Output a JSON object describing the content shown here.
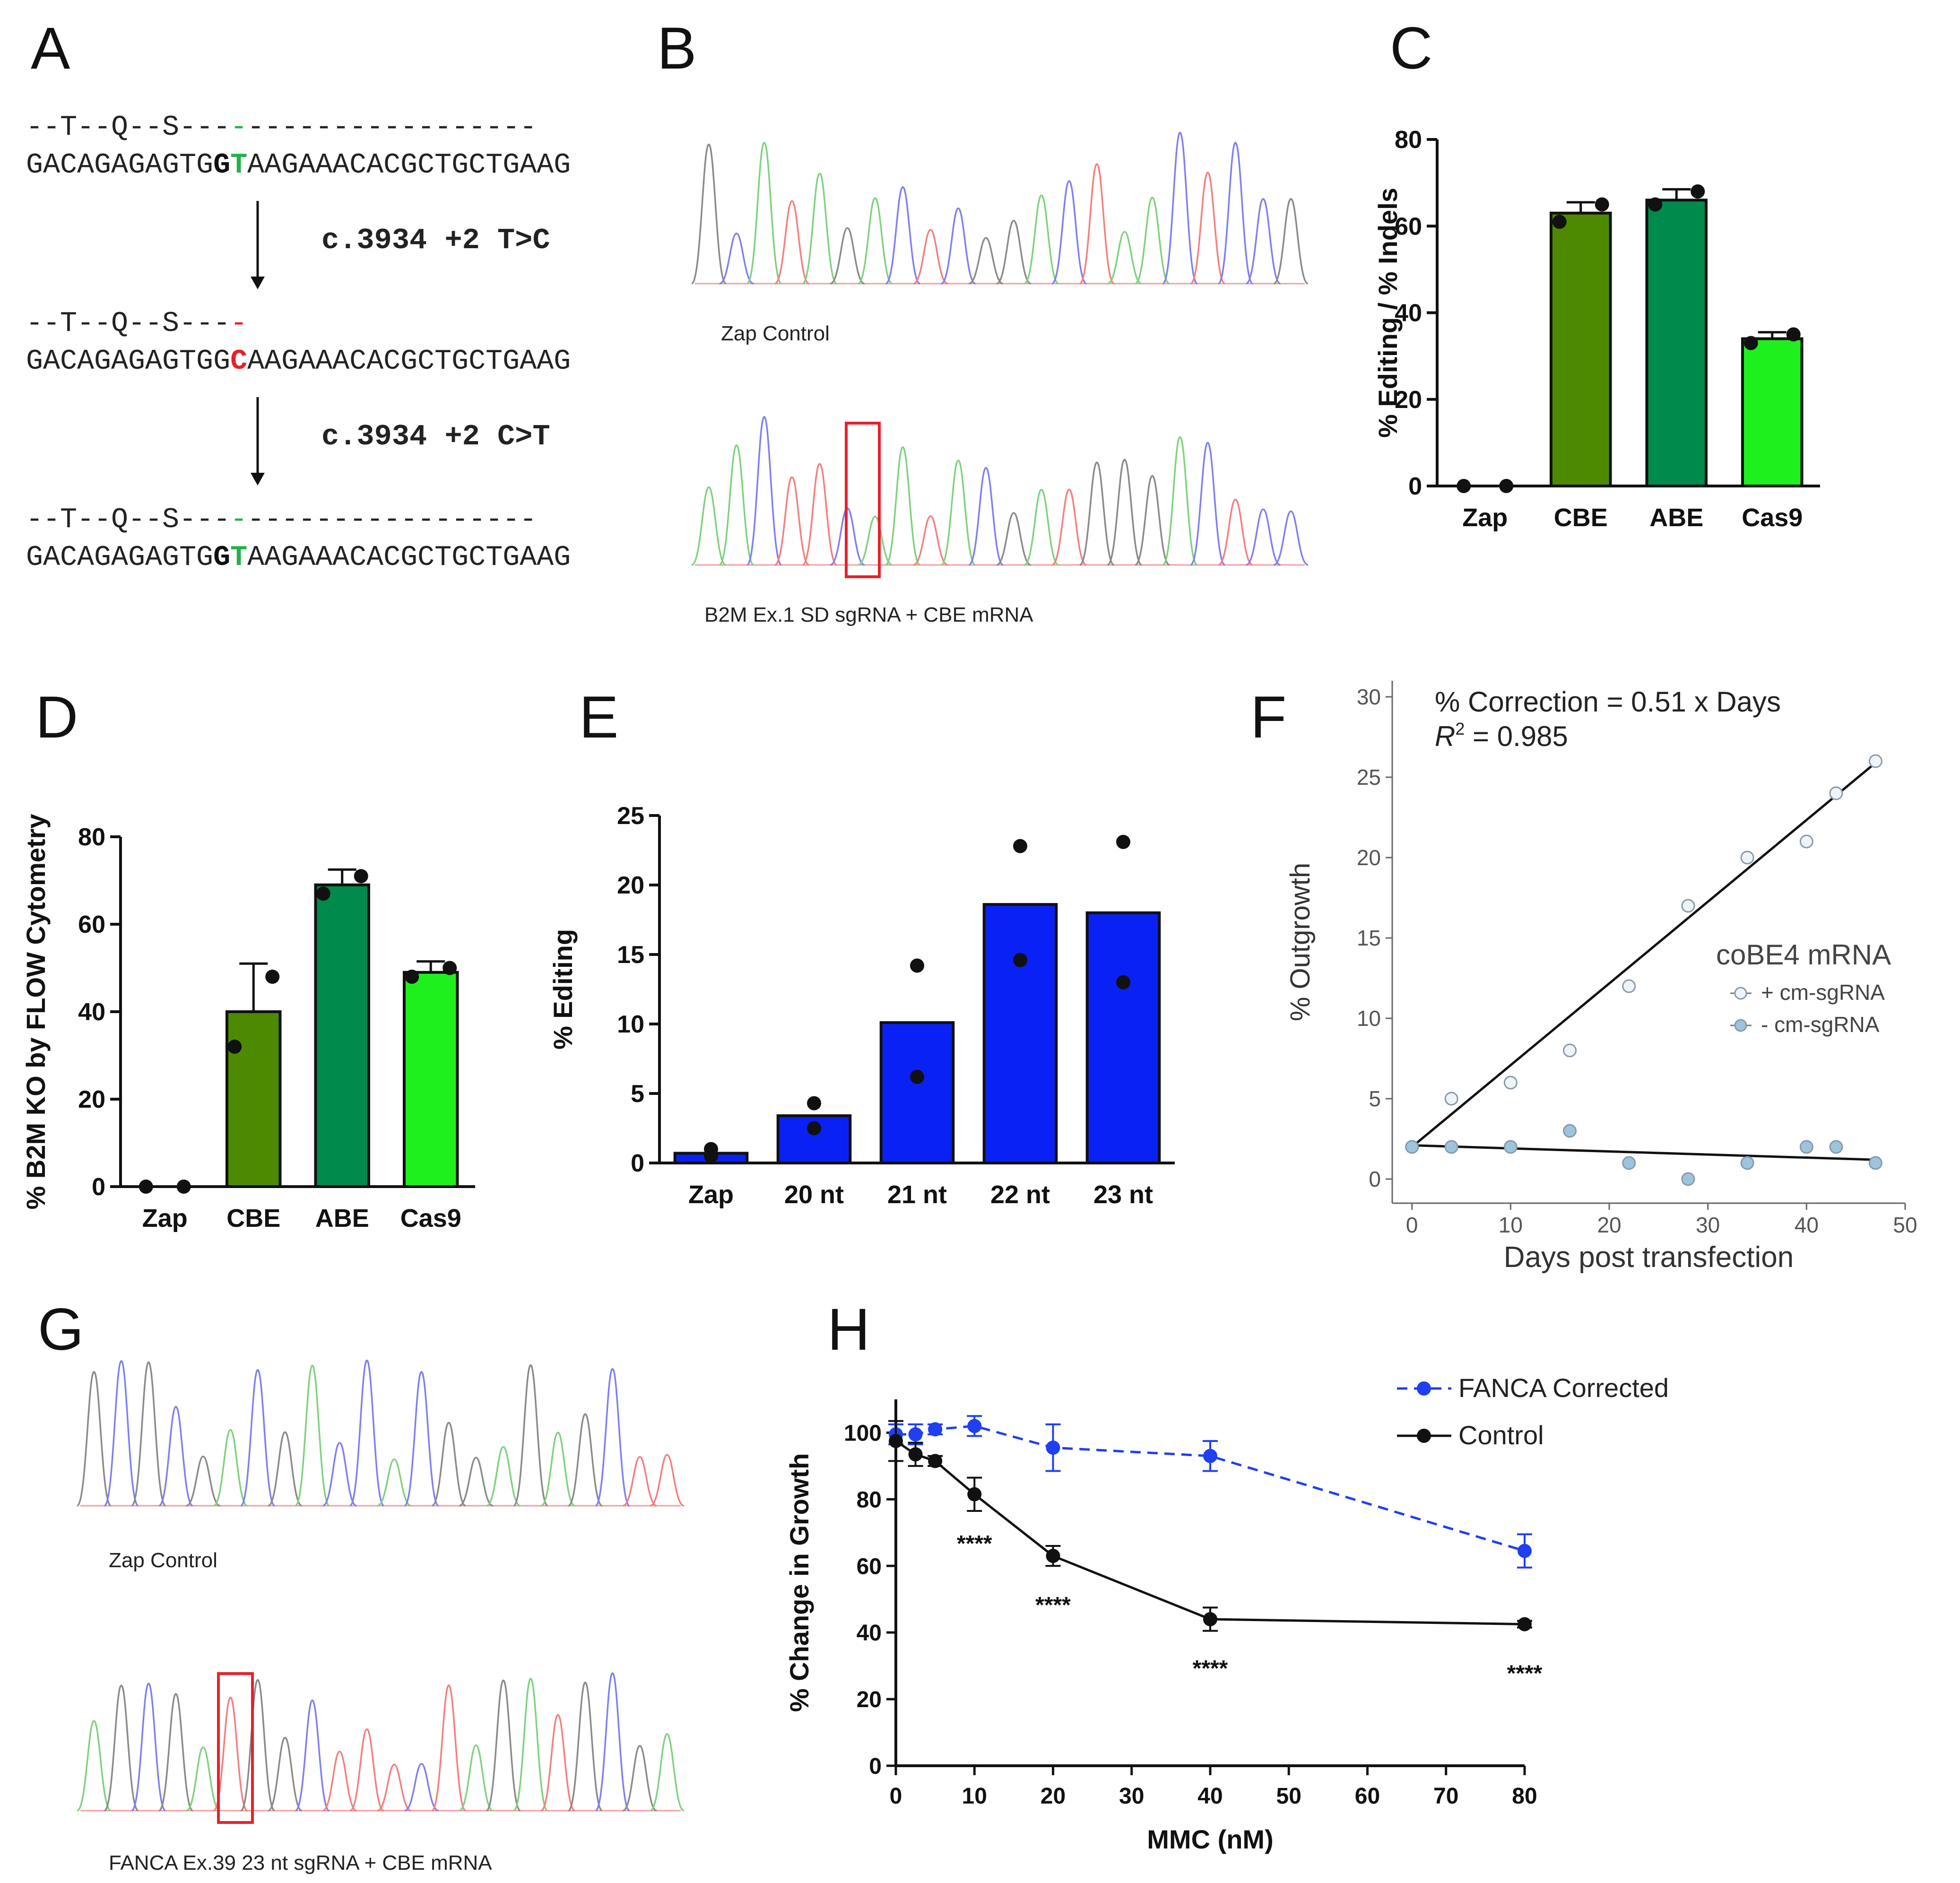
{
  "panel_letters": {
    "a": "A",
    "b": "B",
    "c": "C",
    "d": "D",
    "e": "E",
    "f": "F",
    "g": "G",
    "h": "H"
  },
  "panel_a": {
    "aa1_seg1": "--T--Q--S---",
    "aa1_mark": "-",
    "aa1_seg2": "-----------------",
    "dna1_pre": "GACAGAGAGTG",
    "dna1_g": "G",
    "dna1_t": "T",
    "dna1_post": "AAGAAACACGCTGCTGAAG",
    "step1": "c.3934 +2 T>C",
    "aa2": "--T--Q--S---",
    "aa2_mark": "-",
    "dna2_pre": "GACAGAGAGTGG",
    "dna2_c": "C",
    "dna2_post": "AAGAAACACGCTGCTGAAG",
    "step2": "c.3934 +2 C>T",
    "aa3_seg1": "--T--Q--S---",
    "aa3_mark": "-",
    "aa3_seg2": "-----------------",
    "dna3_pre": "GACAGAGAGTG",
    "dna3_g": "G",
    "dna3_t": "T",
    "dna3_post": "AAGAAACACGCTGCTGAAG",
    "colors": {
      "green": "#21b24b",
      "red": "#e8202a"
    }
  },
  "panel_b": {
    "top_label": "Zap Control",
    "bottom_label": "B2M Ex.1 SD sgRNA + CBE mRNA"
  },
  "panel_g": {
    "top_label": "Zap Control",
    "bottom_label": "FANCA Ex.39 23 nt sgRNA + CBE mRNA"
  },
  "chart_data": [
    {
      "id": "C",
      "type": "bar",
      "ylabel": "% Editing / % Indels",
      "categories": [
        "Zap",
        "CBE",
        "ABE",
        "Cas9"
      ],
      "values": [
        0,
        63,
        66,
        34
      ],
      "errors": [
        0,
        2.5,
        2.5,
        1.5
      ],
      "points": [
        [
          0,
          0
        ],
        [
          61,
          65
        ],
        [
          65,
          68
        ],
        [
          33,
          35
        ]
      ],
      "colors": [
        "#ffffff",
        "#4e8a00",
        "#008a4b",
        "#1ef01e"
      ],
      "ylim": [
        0,
        80
      ],
      "yticks": [
        "0",
        "20",
        "40",
        "60",
        "80"
      ]
    },
    {
      "id": "D",
      "type": "bar",
      "ylabel": "% B2M KO by FLOW Cytometry",
      "categories": [
        "Zap",
        "CBE",
        "ABE",
        "Cas9"
      ],
      "values": [
        0,
        40,
        69,
        49
      ],
      "errors": [
        0,
        11,
        3.5,
        2.5
      ],
      "points": [
        [
          0,
          0
        ],
        [
          32,
          48
        ],
        [
          67,
          71
        ],
        [
          48,
          50
        ]
      ],
      "colors": [
        "#ffffff",
        "#4e8a00",
        "#008a4b",
        "#1ef01e"
      ],
      "ylim": [
        0,
        80
      ],
      "yticks": [
        "0",
        "20",
        "40",
        "60",
        "80"
      ]
    },
    {
      "id": "E",
      "type": "bar",
      "ylabel": "% Editing",
      "categories": [
        "Zap",
        "20 nt",
        "21 nt",
        "22 nt",
        "23 nt"
      ],
      "values": [
        0.7,
        3.4,
        10.1,
        18.6,
        18.0
      ],
      "points": [
        [
          0.5,
          1.0
        ],
        [
          2.5,
          4.3
        ],
        [
          6.2,
          14.2
        ],
        [
          14.6,
          22.8
        ],
        [
          13.0,
          23.1
        ]
      ],
      "color": "#0a21f5",
      "ylim": [
        0,
        25
      ],
      "yticks": [
        "0",
        "5",
        "10",
        "15",
        "20",
        "25"
      ]
    },
    {
      "id": "F",
      "type": "scatter",
      "xlabel": "Days post transfection",
      "ylabel": "% Outgrowth",
      "annotation_line1": "% Correction = 0.51 x Days",
      "annotation_r2_label": "R",
      "annotation_r2_sup": "2",
      "annotation_r2_value": " = 0.985",
      "legend_title": "coBE4 mRNA",
      "xlim": [
        -2,
        50
      ],
      "ylim": [
        -1.5,
        31
      ],
      "xticks": [
        "0",
        "10",
        "20",
        "30",
        "40",
        "50"
      ],
      "yticks": [
        "0",
        "5",
        "10",
        "15",
        "20",
        "25",
        "30"
      ],
      "series": [
        {
          "name": "+ cm-sgRNA",
          "x": [
            0,
            4,
            10,
            16,
            22,
            28,
            34,
            40,
            43,
            47
          ],
          "y": [
            2,
            5,
            6,
            8,
            12,
            17,
            20,
            21,
            24,
            26
          ],
          "fill": "#eef4fa",
          "fit": {
            "x": [
              0,
              47
            ],
            "y": [
              2,
              25.9
            ]
          }
        },
        {
          "name": "- cm-sgRNA",
          "x": [
            0,
            4,
            10,
            16,
            22,
            28,
            34,
            40,
            43,
            47
          ],
          "y": [
            2,
            2,
            2,
            3,
            1,
            0,
            1,
            2,
            2,
            1
          ],
          "fill": "#9cc4de",
          "fit": {
            "x": [
              0,
              47
            ],
            "y": [
              2.1,
              1.2
            ]
          }
        }
      ]
    },
    {
      "id": "H",
      "type": "line",
      "xlabel": "MMC (nM)",
      "ylabel": "% Change in Growth",
      "xticks": [
        "0",
        "10",
        "20",
        "30",
        "40",
        "50",
        "60",
        "70",
        "80"
      ],
      "yticks": [
        "0",
        "20",
        "40",
        "60",
        "80",
        "100"
      ],
      "xlim": [
        0,
        80
      ],
      "ylim": [
        0,
        110
      ],
      "series": [
        {
          "name": "FANCA Corrected",
          "color": "#1f3ff0",
          "dashed": true,
          "x": [
            0,
            2.5,
            5,
            10,
            20,
            40,
            80
          ],
          "y": [
            99.5,
            99.5,
            101,
            102,
            95.5,
            93,
            64.5
          ],
          "err": [
            3,
            3,
            1.5,
            3,
            7,
            4.5,
            5
          ]
        },
        {
          "name": "Control",
          "color": "#111111",
          "dashed": false,
          "x": [
            0,
            2.5,
            5,
            10,
            20,
            40,
            80
          ],
          "y": [
            97.5,
            93.5,
            91.5,
            81.5,
            63,
            44,
            42.5
          ],
          "err": [
            6,
            3.5,
            1.5,
            5,
            3,
            3.5,
            1
          ]
        }
      ],
      "significance": [
        {
          "x": 10,
          "label": "****"
        },
        {
          "x": 20,
          "label": "****"
        },
        {
          "x": 40,
          "label": "****"
        },
        {
          "x": 80,
          "label": "****"
        }
      ]
    }
  ]
}
